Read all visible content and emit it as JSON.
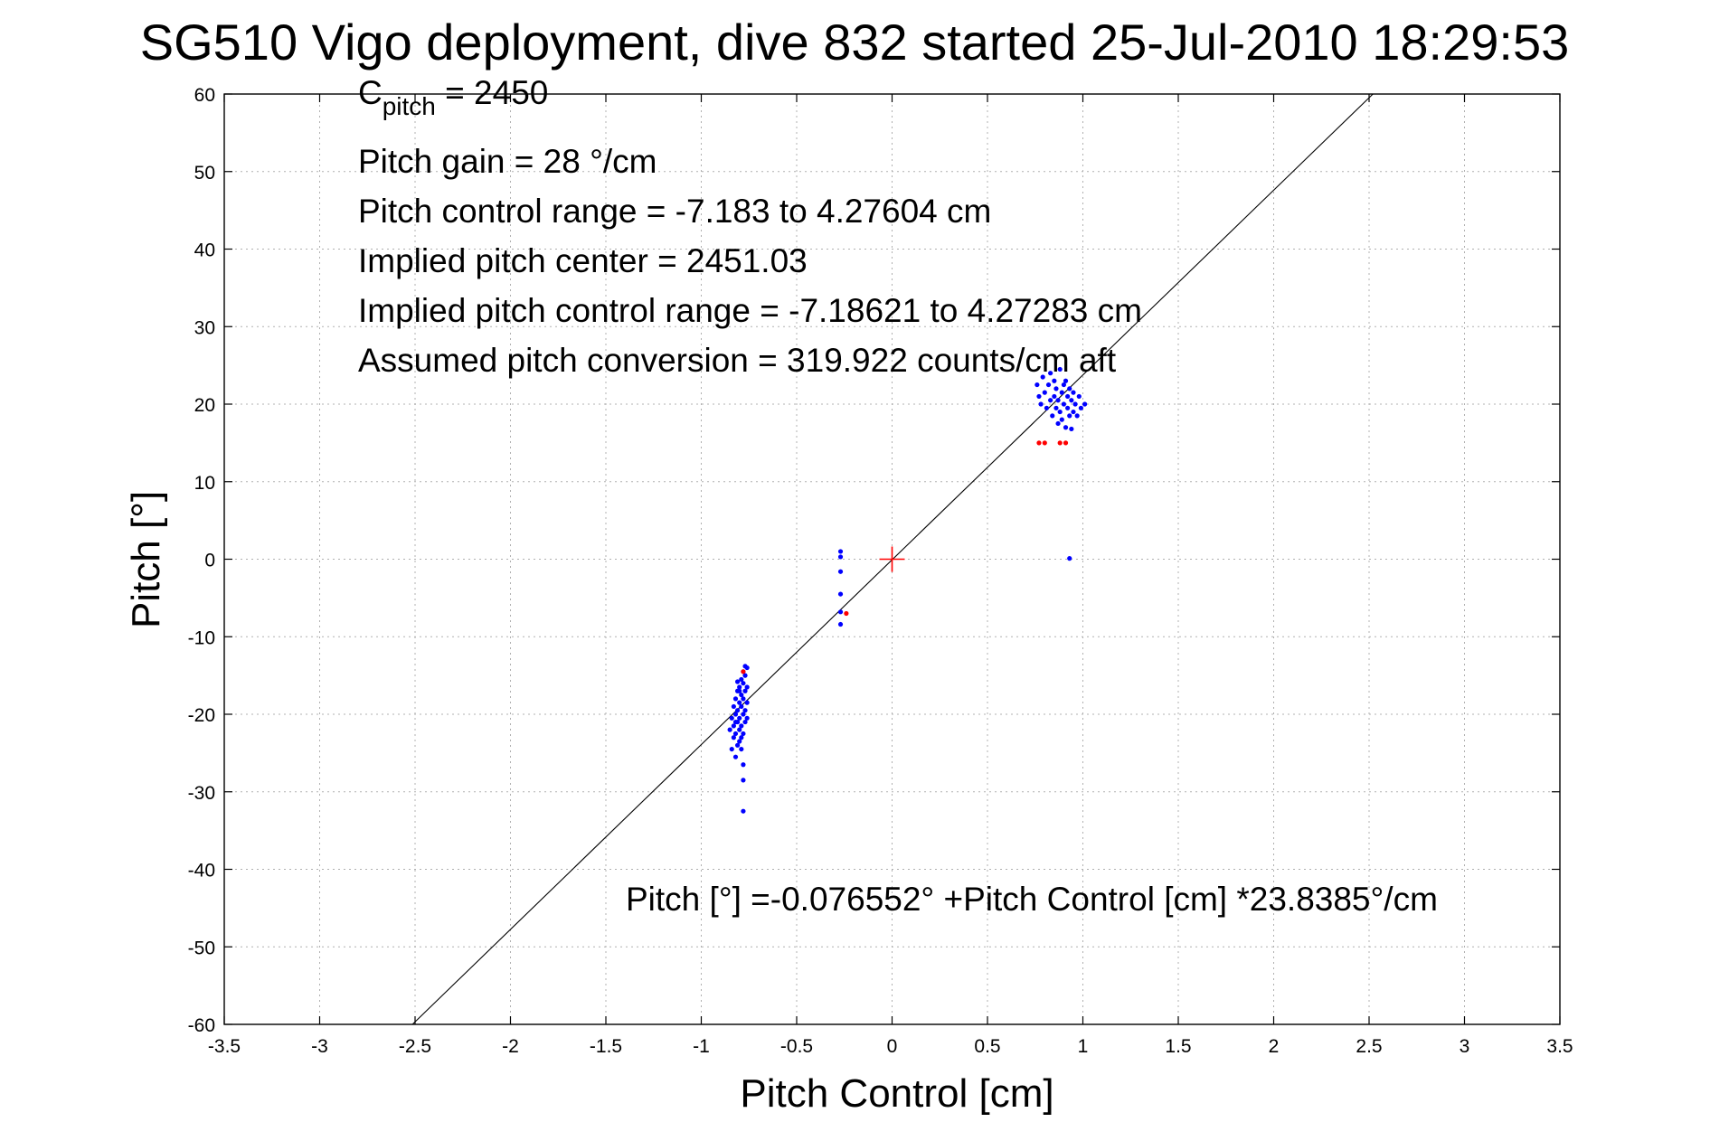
{
  "chart_data": {
    "type": "scatter",
    "title": "SG510 Vigo deployment, dive 832 started 25-Jul-2010 18:29:53",
    "xlabel": "Pitch Control [cm]",
    "ylabel": "Pitch [°]",
    "xlim": [
      -3.5,
      3.5
    ],
    "ylim": [
      -60,
      60
    ],
    "xticks": [
      -3.5,
      -3,
      -2.5,
      -2,
      -1.5,
      -1,
      -0.5,
      0,
      0.5,
      1,
      1.5,
      2,
      2.5,
      3,
      3.5
    ],
    "xtick_labels": [
      "-3.5",
      "-3",
      "-2.5",
      "-2",
      "-1.5",
      "-1",
      "-0.5",
      "0",
      "0.5",
      "1",
      "1.5",
      "2",
      "2.5",
      "3",
      "3.5"
    ],
    "yticks": [
      60,
      50,
      40,
      30,
      20,
      10,
      0,
      -10,
      -20,
      -30,
      -40,
      -50,
      -60
    ],
    "ytick_labels": [
      "60",
      "50",
      "40",
      "30",
      "20",
      "10",
      "0",
      "-10",
      "-20",
      "-30",
      "-40",
      "-50",
      "-60"
    ],
    "grid": true,
    "annotations": {
      "c_pitch_main": "C",
      "c_pitch_sub": "pitch",
      "c_pitch_value": " = 2450",
      "gain": "Pitch gain = 28 °/cm",
      "range": "Pitch control range = -7.183 to 4.27604 cm",
      "center": "Implied pitch center = 2451.03",
      "implied_range": "Implied pitch control range = -7.18621 to 4.27283 cm",
      "conversion": "Assumed pitch conversion = 319.922 counts/cm aft",
      "fit_equation": "Pitch [°] =-0.076552° +Pitch Control [cm] *23.8385°/cm"
    },
    "fit_line": {
      "intercept": -0.076552,
      "slope": 23.8385
    },
    "origin_marker": {
      "x": 0,
      "y": 0,
      "color": "#ff0000"
    },
    "series": [
      {
        "color": "#0000ff",
        "points": [
          [
            -0.85,
            -22.0
          ],
          [
            -0.84,
            -24.5
          ],
          [
            -0.84,
            -20.5
          ],
          [
            -0.83,
            -23.0
          ],
          [
            -0.83,
            -19.0
          ],
          [
            -0.83,
            -21.5
          ],
          [
            -0.82,
            -25.5
          ],
          [
            -0.82,
            -18.0
          ],
          [
            -0.82,
            -22.5
          ],
          [
            -0.82,
            -20.0
          ],
          [
            -0.81,
            -24.0
          ],
          [
            -0.81,
            -17.0
          ],
          [
            -0.81,
            -21.0
          ],
          [
            -0.81,
            -19.5
          ],
          [
            -0.8,
            -23.5
          ],
          [
            -0.8,
            -16.5
          ],
          [
            -0.8,
            -20.5
          ],
          [
            -0.8,
            -18.5
          ],
          [
            -0.8,
            -22.0
          ],
          [
            -0.79,
            -15.5
          ],
          [
            -0.79,
            -19.0
          ],
          [
            -0.79,
            -21.5
          ],
          [
            -0.79,
            -17.5
          ],
          [
            -0.79,
            -24.5
          ],
          [
            -0.78,
            -16.0
          ],
          [
            -0.78,
            -20.0
          ],
          [
            -0.78,
            -18.0
          ],
          [
            -0.78,
            -22.5
          ],
          [
            -0.78,
            -14.5
          ],
          [
            -0.77,
            -17.0
          ],
          [
            -0.77,
            -19.5
          ],
          [
            -0.77,
            -21.0
          ],
          [
            -0.77,
            -15.0
          ],
          [
            -0.77,
            -13.8
          ],
          [
            -0.76,
            -16.5
          ],
          [
            -0.76,
            -18.5
          ],
          [
            -0.76,
            -20.5
          ],
          [
            -0.76,
            -14.0
          ],
          [
            -0.82,
            -21.0
          ],
          [
            -0.8,
            -17.0
          ],
          [
            -0.78,
            -26.5
          ],
          [
            -0.78,
            -28.5
          ],
          [
            -0.78,
            -32.5
          ],
          [
            -0.79,
            -23.0
          ],
          [
            -0.81,
            -15.8
          ],
          [
            -0.27,
            1.0
          ],
          [
            -0.27,
            0.3
          ],
          [
            -0.27,
            -1.6
          ],
          [
            -0.27,
            -4.5
          ],
          [
            -0.27,
            -6.8
          ],
          [
            -0.27,
            -8.4
          ],
          [
            0.76,
            22.5
          ],
          [
            0.77,
            21.0
          ],
          [
            0.78,
            20.0
          ],
          [
            0.79,
            23.5
          ],
          [
            0.8,
            21.5
          ],
          [
            0.81,
            19.5
          ],
          [
            0.82,
            22.5
          ],
          [
            0.83,
            20.5
          ],
          [
            0.83,
            24.0
          ],
          [
            0.84,
            18.5
          ],
          [
            0.85,
            21.0
          ],
          [
            0.85,
            23.0
          ],
          [
            0.86,
            19.5
          ],
          [
            0.86,
            22.0
          ],
          [
            0.87,
            17.5
          ],
          [
            0.87,
            20.5
          ],
          [
            0.88,
            24.5
          ],
          [
            0.88,
            19.0
          ],
          [
            0.89,
            21.5
          ],
          [
            0.89,
            18.0
          ],
          [
            0.9,
            22.5
          ],
          [
            0.9,
            20.0
          ],
          [
            0.91,
            17.0
          ],
          [
            0.91,
            23.0
          ],
          [
            0.92,
            19.5
          ],
          [
            0.92,
            21.0
          ],
          [
            0.93,
            18.5
          ],
          [
            0.93,
            22.0
          ],
          [
            0.94,
            20.5
          ],
          [
            0.94,
            16.8
          ],
          [
            0.95,
            19.0
          ],
          [
            0.95,
            21.5
          ],
          [
            0.96,
            20.0
          ],
          [
            0.97,
            18.5
          ],
          [
            0.98,
            21.0
          ],
          [
            0.99,
            19.5
          ],
          [
            1.01,
            20.0
          ],
          [
            0.93,
            0.1
          ]
        ]
      },
      {
        "color": "#ff0000",
        "points": [
          [
            -0.78,
            -14.5
          ],
          [
            -0.24,
            -7.0
          ],
          [
            0.77,
            15.0
          ],
          [
            0.8,
            15.0
          ],
          [
            0.88,
            15.0
          ],
          [
            0.91,
            15.0
          ]
        ]
      }
    ]
  }
}
